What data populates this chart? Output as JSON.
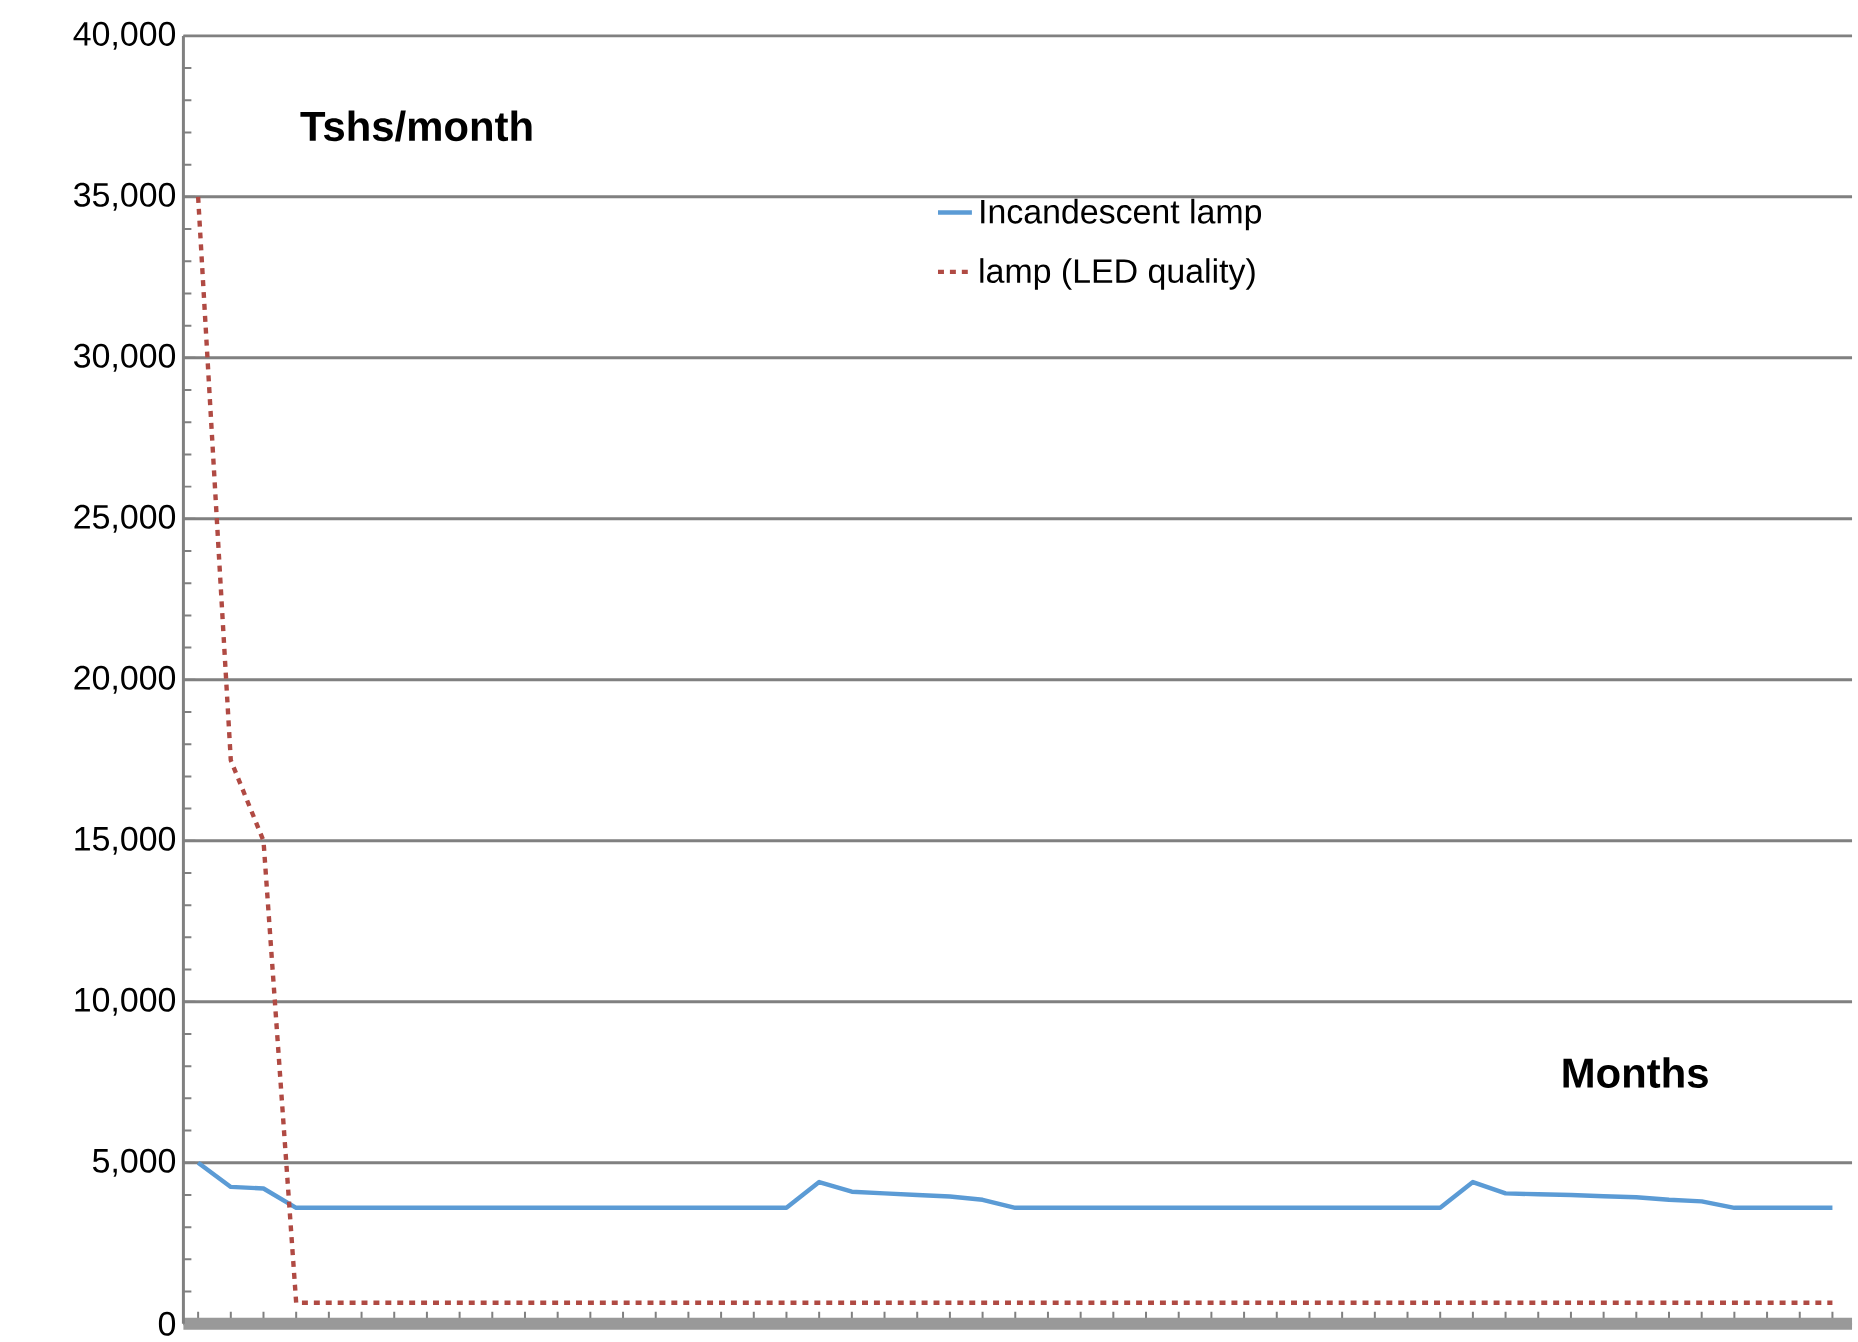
{
  "chart_data": {
    "type": "line",
    "ylabel": "Tshs/month",
    "xlabel": "Months",
    "categories": [
      null,
      null,
      null,
      null,
      null,
      null,
      null,
      null,
      null,
      null,
      null,
      null,
      null,
      null,
      null,
      null,
      null,
      null,
      null,
      null,
      null,
      null,
      null,
      null,
      null,
      null,
      null,
      null,
      null,
      null,
      null,
      null,
      null,
      null,
      null,
      null,
      null,
      null,
      null,
      null,
      null,
      null,
      null,
      null,
      null,
      null,
      null,
      null,
      null,
      null,
      null
    ],
    "series": [
      {
        "name": "Incandescent lamp",
        "color": "#5b9bd5",
        "line_style": "solid",
        "values": [
          5000,
          4250,
          4200,
          3600,
          3600,
          3600,
          3600,
          3600,
          3600,
          3600,
          3600,
          3600,
          3600,
          3600,
          3600,
          3600,
          3600,
          3600,
          3600,
          4400,
          4100,
          4050,
          4000,
          3950,
          3850,
          3600,
          3600,
          3600,
          3600,
          3600,
          3600,
          3600,
          3600,
          3600,
          3600,
          3600,
          3600,
          3600,
          3600,
          4400,
          4050,
          4020,
          4000,
          3960,
          3930,
          3850,
          3800,
          3600,
          3600,
          3600,
          3600
        ]
      },
      {
        "name": "lamp (LED quality)",
        "color": "#b04a43",
        "line_style": "dashed",
        "values": [
          35000,
          17500,
          15000,
          650,
          650,
          650,
          650,
          650,
          650,
          650,
          650,
          650,
          650,
          650,
          650,
          650,
          650,
          650,
          650,
          650,
          650,
          650,
          650,
          650,
          650,
          650,
          650,
          650,
          650,
          650,
          650,
          650,
          650,
          650,
          650,
          650,
          650,
          650,
          650,
          650,
          650,
          650,
          650,
          650,
          650,
          650,
          650,
          650,
          650,
          650,
          650
        ]
      }
    ],
    "ylim": [
      0,
      40000
    ],
    "yticks": [
      {
        "value": 0,
        "label": "0"
      },
      {
        "value": 5000,
        "label": "5,000"
      },
      {
        "value": 10000,
        "label": "10,000"
      },
      {
        "value": 15000,
        "label": "15,000"
      },
      {
        "value": 20000,
        "label": "20,000"
      },
      {
        "value": 25000,
        "label": "25,000"
      },
      {
        "value": 30000,
        "label": "30,000"
      },
      {
        "value": 35000,
        "label": "35,000"
      },
      {
        "value": 40000,
        "label": "40,000"
      }
    ],
    "grid": "y",
    "legend": "top",
    "tick_labels": "y",
    "marker": "none"
  }
}
